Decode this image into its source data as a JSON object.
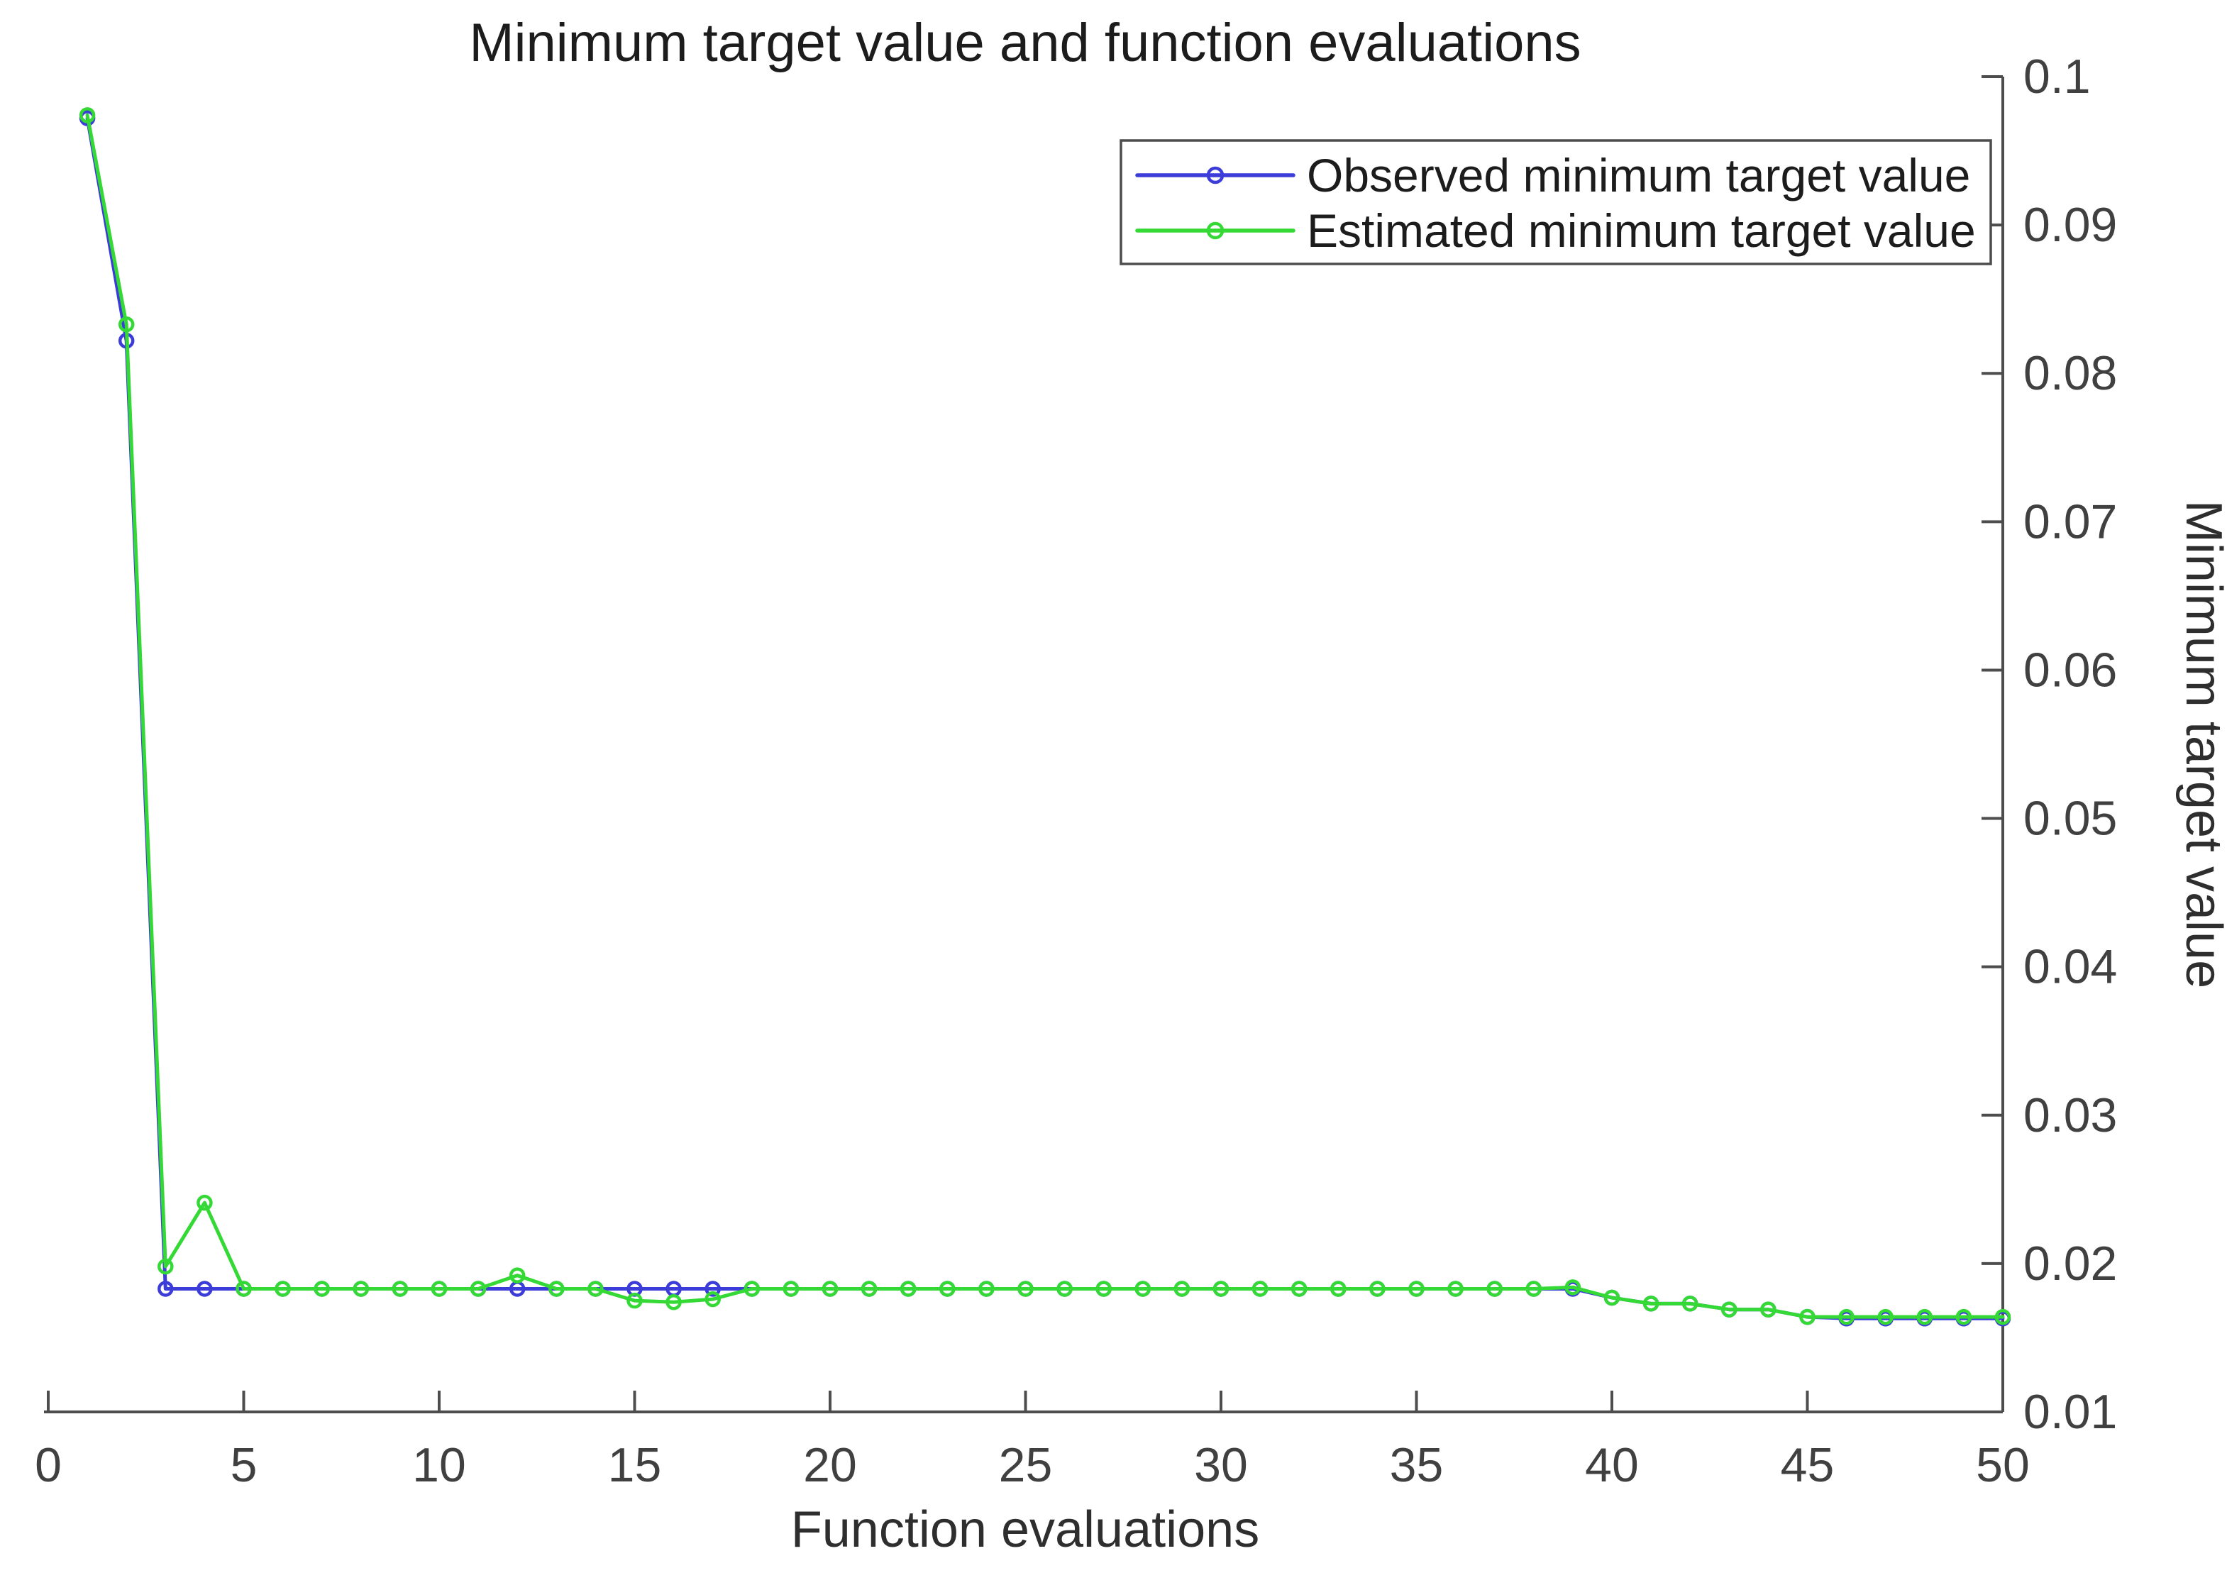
{
  "figure": {
    "title": "Minimum target value and function evaluations",
    "xlabel": "Function evaluations",
    "ylabel": "Minimum target value"
  },
  "colors": {
    "observed": "#3c3cd9",
    "estimated": "#35d935",
    "axis": "#4d4d4d",
    "background": "#ffffff"
  },
  "legend": {
    "items": [
      {
        "label": "Observed minimum target value",
        "series": "observed"
      },
      {
        "label": "Estimated minimum target value",
        "series": "estimated"
      }
    ]
  },
  "chart_data": {
    "type": "line",
    "title": "Minimum target value and function evaluations",
    "xlabel": "Function evaluations",
    "ylabel": "Minimum target value",
    "xlim": [
      0,
      50
    ],
    "ylim": [
      0.01,
      0.1
    ],
    "x_ticks": [
      0,
      5,
      10,
      15,
      20,
      25,
      30,
      35,
      40,
      45,
      50
    ],
    "y_ticks": [
      0.01,
      0.02,
      0.03,
      0.04,
      0.05,
      0.06,
      0.07,
      0.08,
      0.09,
      0.1
    ],
    "y_tick_labels": [
      "0.01",
      "0.02",
      "0.03",
      "0.04",
      "0.05",
      "0.06",
      "0.07",
      "0.08",
      "0.09",
      "0.1"
    ],
    "grid": false,
    "y_axis_location": "right",
    "legend_position": "top-right-inside",
    "marker": "circle",
    "x": [
      1,
      2,
      3,
      4,
      5,
      6,
      7,
      8,
      9,
      10,
      11,
      12,
      13,
      14,
      15,
      16,
      17,
      18,
      19,
      20,
      21,
      22,
      23,
      24,
      25,
      26,
      27,
      28,
      29,
      30,
      31,
      32,
      33,
      34,
      35,
      36,
      37,
      38,
      39,
      40,
      41,
      42,
      43,
      44,
      45,
      46,
      47,
      48,
      49,
      50
    ],
    "series": [
      {
        "name": "Observed minimum target value",
        "color_key": "observed",
        "values": [
          0.0972,
          0.0822,
          0.0183,
          0.0183,
          0.0183,
          0.0183,
          0.0183,
          0.0183,
          0.0183,
          0.0183,
          0.0183,
          0.0183,
          0.0183,
          0.0183,
          0.0183,
          0.0183,
          0.0183,
          0.0183,
          0.0183,
          0.0183,
          0.0183,
          0.0183,
          0.0183,
          0.0183,
          0.0183,
          0.0183,
          0.0183,
          0.0183,
          0.0183,
          0.0183,
          0.0183,
          0.0183,
          0.0183,
          0.0183,
          0.0183,
          0.0183,
          0.0183,
          0.0183,
          0.0183,
          0.0177,
          0.0173,
          0.0173,
          0.0169,
          0.0169,
          0.0164,
          0.0163,
          0.0163,
          0.0163,
          0.0163,
          0.0163
        ]
      },
      {
        "name": "Estimated minimum target value",
        "color_key": "estimated",
        "values": [
          0.0974,
          0.0833,
          0.0198,
          0.0241,
          0.0183,
          0.0183,
          0.0183,
          0.0183,
          0.0183,
          0.0183,
          0.0183,
          0.0192,
          0.0183,
          0.0183,
          0.0175,
          0.0174,
          0.0176,
          0.0183,
          0.0183,
          0.0183,
          0.0183,
          0.0183,
          0.0183,
          0.0183,
          0.0183,
          0.0183,
          0.0183,
          0.0183,
          0.0183,
          0.0183,
          0.0183,
          0.0183,
          0.0183,
          0.0183,
          0.0183,
          0.0183,
          0.0183,
          0.0183,
          0.0184,
          0.0177,
          0.0173,
          0.0173,
          0.0169,
          0.0169,
          0.0164,
          0.0164,
          0.0164,
          0.0164,
          0.0164,
          0.0164
        ]
      }
    ]
  }
}
